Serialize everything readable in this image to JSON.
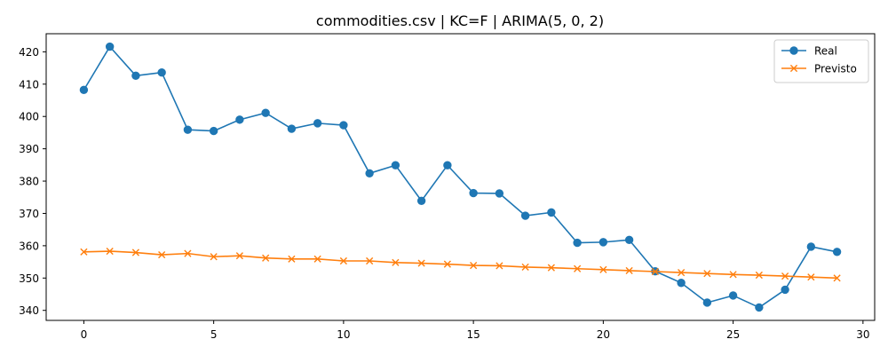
{
  "chart_data": {
    "type": "line",
    "title": "commodities.csv | KC=F | ARIMA(5, 0, 2)",
    "xlabel": "",
    "ylabel": "",
    "xlim": [
      -1.45,
      30.45
    ],
    "ylim": [
      336.9,
      425.6
    ],
    "xticks": [
      0,
      5,
      10,
      15,
      20,
      25,
      30
    ],
    "yticks": [
      340,
      350,
      360,
      370,
      380,
      390,
      400,
      410,
      420
    ],
    "grid": false,
    "legend_position": "top-right",
    "x": [
      0,
      1,
      2,
      3,
      4,
      5,
      6,
      7,
      8,
      9,
      10,
      11,
      12,
      13,
      14,
      15,
      16,
      17,
      18,
      19,
      20,
      21,
      22,
      23,
      24,
      25,
      26,
      27,
      28,
      29
    ],
    "series": [
      {
        "name": "Real",
        "color": "#1f77b4",
        "marker": "circle",
        "values": [
          408.2,
          421.6,
          412.6,
          413.6,
          395.9,
          395.5,
          399.0,
          401.1,
          396.2,
          397.9,
          397.3,
          382.4,
          384.9,
          373.9,
          384.9,
          376.3,
          376.2,
          369.3,
          370.3,
          360.9,
          361.1,
          361.8,
          352.1,
          348.5,
          342.4,
          344.6,
          340.9,
          346.4,
          359.7,
          358.1
        ]
      },
      {
        "name": "Previsto",
        "color": "#ff7f0e",
        "marker": "x",
        "values": [
          358.1,
          358.3,
          357.9,
          357.2,
          357.6,
          356.6,
          356.9,
          356.2,
          355.9,
          355.9,
          355.3,
          355.3,
          354.8,
          354.6,
          354.3,
          353.9,
          353.8,
          353.4,
          353.2,
          352.9,
          352.6,
          352.3,
          352.0,
          351.7,
          351.4,
          351.1,
          350.9,
          350.6,
          350.3,
          350.0
        ]
      }
    ]
  }
}
